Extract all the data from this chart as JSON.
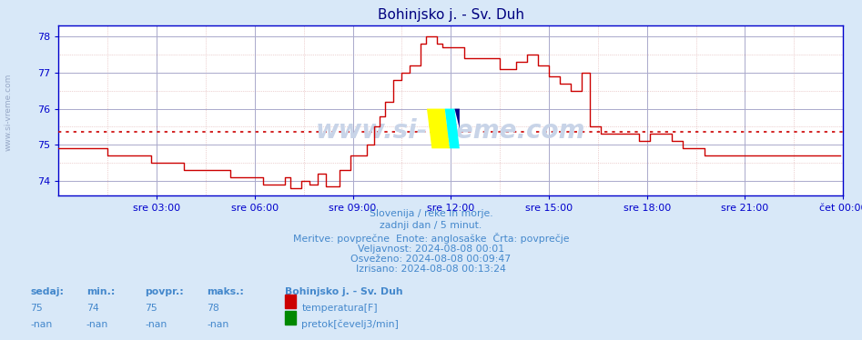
{
  "title": "Bohinjsko j. - Sv. Duh",
  "title_color": "#000080",
  "bg_color": "#d8e8f8",
  "plot_bg_color": "#ffffff",
  "axis_color": "#0000cc",
  "line_color": "#cc0000",
  "avg_value": 75.35,
  "ylim": [
    73.6,
    78.3
  ],
  "yticks": [
    74,
    75,
    76,
    77,
    78
  ],
  "xtick_labels": [
    "sre 03:00",
    "sre 06:00",
    "sre 09:00",
    "sre 12:00",
    "sre 15:00",
    "sre 18:00",
    "sre 21:00",
    "čet 00:00"
  ],
  "watermark": "www.si-vreme.com",
  "side_text": "www.si-vreme.com",
  "bottom_texts": [
    "Slovenija / reke in morje.",
    "zadnji dan / 5 minut.",
    "Meritve: povprečne  Enote: anglosaške  Črta: povprečje",
    "Veljavnost: 2024-08-08 00:01",
    "Osveženo: 2024-08-08 00:09:47",
    "Izrisano: 2024-08-08 00:13:24"
  ],
  "bottom_text_color": "#4488cc",
  "stats_labels": [
    "sedaj:",
    "min.:",
    "povpr.:",
    "maks.:"
  ],
  "stats_temp": [
    "75",
    "74",
    "75",
    "78"
  ],
  "stats_flow": [
    "-nan",
    "-nan",
    "-nan",
    "-nan"
  ],
  "legend_label1": "temperatura[F]",
  "legend_label2": "pretok[čevelj3/min]",
  "legend_color1": "#cc0000",
  "legend_color2": "#008800",
  "station_name": "Bohinjsko j. - Sv. Duh",
  "n_points": 288
}
